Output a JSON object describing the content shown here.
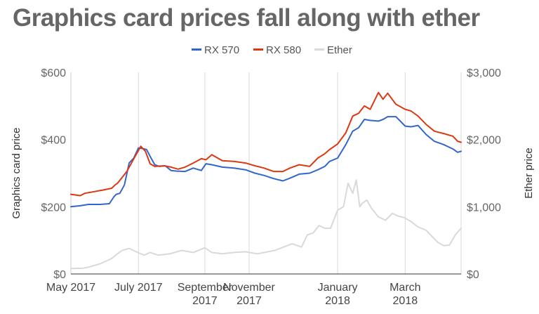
{
  "chart_data": {
    "type": "line",
    "title": "Graphics card prices fall along with ether",
    "ylabel": "Graphics card price",
    "ylabel_right": "Ether price",
    "ylim": [
      0,
      600
    ],
    "ylim_right": [
      0,
      3000
    ],
    "yticks": [
      "$0",
      "$200",
      "$400",
      "$600"
    ],
    "yticks_right": [
      "$0",
      "$1,000",
      "$2,000",
      "$3,000"
    ],
    "xlim": [
      0,
      335
    ],
    "xticks": [
      {
        "lines": [
          "May 2017"
        ],
        "x": 0
      },
      {
        "lines": [
          "July 2017"
        ],
        "x": 58
      },
      {
        "lines": [
          "September",
          "2017"
        ],
        "x": 115
      },
      {
        "lines": [
          "November",
          "2017"
        ],
        "x": 153
      },
      {
        "lines": [
          "January",
          "2018"
        ],
        "x": 229
      },
      {
        "lines": [
          "March",
          "2018"
        ],
        "x": 287
      }
    ],
    "legend": {
      "position": "top",
      "entries": [
        "RX 570",
        "RX 580",
        "Ether"
      ]
    },
    "grid": "vertical",
    "series": [
      {
        "name": "RX 570",
        "axis": "left",
        "color": "#3366cc",
        "x": [
          0,
          8,
          15,
          25,
          33,
          37,
          39,
          42,
          46,
          50,
          54,
          58,
          62,
          65,
          68,
          72,
          76,
          81,
          86,
          91,
          98,
          105,
          112,
          116,
          121,
          130,
          140,
          150,
          158,
          166,
          174,
          182,
          188,
          196,
          205,
          212,
          218,
          222,
          229,
          236,
          242,
          247,
          252,
          257,
          264,
          268,
          272,
          279,
          287,
          292,
          298,
          305,
          312,
          320,
          328,
          332,
          335
        ],
        "y": [
          200,
          203,
          207,
          207,
          209,
          230,
          237,
          240,
          265,
          330,
          345,
          375,
          373,
          370,
          350,
          325,
          320,
          322,
          308,
          306,
          305,
          315,
          308,
          328,
          325,
          318,
          315,
          310,
          300,
          293,
          284,
          277,
          285,
          297,
          300,
          310,
          320,
          335,
          345,
          385,
          425,
          435,
          460,
          457,
          455,
          460,
          468,
          468,
          440,
          438,
          442,
          415,
          395,
          385,
          372,
          362,
          365
        ]
      },
      {
        "name": "RX 580",
        "axis": "left",
        "color": "#dc3912",
        "x": [
          0,
          8,
          12,
          20,
          28,
          35,
          38,
          40,
          43,
          48,
          52,
          56,
          60,
          64,
          68,
          72,
          80,
          86,
          92,
          98,
          105,
          112,
          116,
          121,
          130,
          140,
          150,
          158,
          166,
          174,
          182,
          188,
          196,
          205,
          212,
          218,
          222,
          229,
          236,
          242,
          247,
          252,
          257,
          264,
          268,
          272,
          279,
          287,
          292,
          298,
          305,
          312,
          320,
          328,
          332,
          335
        ],
        "y": [
          237,
          233,
          240,
          245,
          250,
          255,
          265,
          270,
          283,
          305,
          330,
          355,
          380,
          365,
          328,
          320,
          322,
          318,
          312,
          318,
          330,
          343,
          340,
          355,
          337,
          335,
          330,
          322,
          315,
          305,
          305,
          315,
          325,
          320,
          345,
          358,
          370,
          387,
          420,
          470,
          478,
          500,
          490,
          540,
          520,
          538,
          505,
          490,
          485,
          470,
          445,
          425,
          418,
          410,
          395,
          392
        ]
      },
      {
        "name": "Ether",
        "axis": "right",
        "color": "#d9d9d9",
        "x": [
          0,
          10,
          15,
          25,
          35,
          40,
          44,
          50,
          55,
          60,
          63,
          68,
          75,
          85,
          95,
          105,
          115,
          121,
          130,
          140,
          150,
          160,
          175,
          190,
          198,
          203,
          208,
          213,
          218,
          223,
          229,
          234,
          238,
          242,
          245,
          248,
          250,
          254,
          258,
          264,
          270,
          276,
          281,
          286,
          292,
          298,
          305,
          310,
          315,
          320,
          325,
          330,
          335
        ],
        "y": [
          80,
          85,
          100,
          150,
          230,
          300,
          350,
          380,
          340,
          300,
          280,
          320,
          280,
          300,
          350,
          320,
          390,
          320,
          300,
          320,
          330,
          300,
          350,
          450,
          400,
          580,
          610,
          720,
          680,
          680,
          950,
          1000,
          1350,
          1200,
          1400,
          1000,
          1050,
          1100,
          980,
          850,
          800,
          900,
          860,
          840,
          780,
          700,
          650,
          560,
          470,
          420,
          430,
          580,
          680
        ]
      }
    ]
  }
}
